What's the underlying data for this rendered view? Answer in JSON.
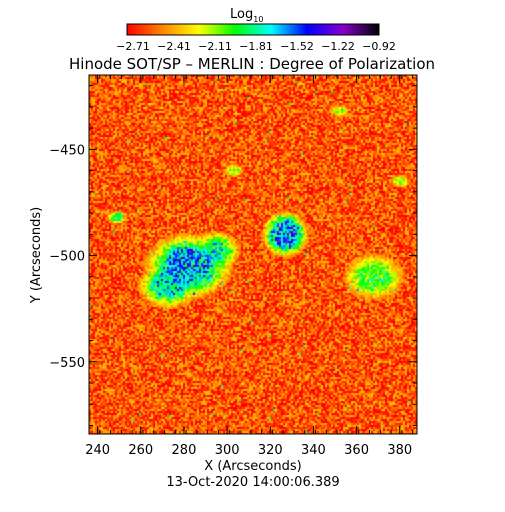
{
  "colorbar": {
    "title_main": "Log",
    "title_sub": "10",
    "tick_labels": [
      "−2.71",
      "−2.41",
      "−2.11",
      "−1.81",
      "−1.52",
      "−1.22",
      "−0.92"
    ]
  },
  "chart_data": {
    "type": "heatmap",
    "title": "Hinode SOT/SP – MERLIN : Degree of Polarization",
    "xlabel": "X (Arcseconds)",
    "ylabel": "Y (Arcseconds)",
    "xlim": [
      236,
      388
    ],
    "ylim": [
      -584,
      -415
    ],
    "xticks": [
      240,
      260,
      280,
      300,
      320,
      340,
      360,
      380
    ],
    "yticks": [
      -450,
      -500,
      -550
    ],
    "ytick_labels": [
      "−450",
      "−500",
      "−550"
    ],
    "value_range": [
      -2.71,
      -0.92
    ],
    "colormap": [
      "#ff0000",
      "#ff8800",
      "#ffff00",
      "#00ff00",
      "#00ffff",
      "#0000ff",
      "#8800cc",
      "#000000"
    ],
    "background_level": -2.55,
    "regions": [
      {
        "x": 282,
        "y": -505,
        "rx": 13,
        "ry": 10,
        "level": -1.45
      },
      {
        "x": 273,
        "y": -514,
        "rx": 9,
        "ry": 7,
        "level": -1.6
      },
      {
        "x": 295,
        "y": -498,
        "rx": 7,
        "ry": 6,
        "level": -1.7
      },
      {
        "x": 327,
        "y": -490,
        "rx": 7,
        "ry": 7,
        "level": -1.35
      },
      {
        "x": 368,
        "y": -510,
        "rx": 9,
        "ry": 7,
        "level": -1.85
      },
      {
        "x": 249,
        "y": -482,
        "rx": 3,
        "ry": 2,
        "level": -1.9
      },
      {
        "x": 303,
        "y": -460,
        "rx": 3,
        "ry": 2,
        "level": -2.0
      },
      {
        "x": 380,
        "y": -465,
        "rx": 3,
        "ry": 2,
        "level": -2.0
      },
      {
        "x": 352,
        "y": -432,
        "rx": 3,
        "ry": 2,
        "level": -2.05
      }
    ]
  },
  "timestamp": "13-Oct-2020 14:00:06.389"
}
